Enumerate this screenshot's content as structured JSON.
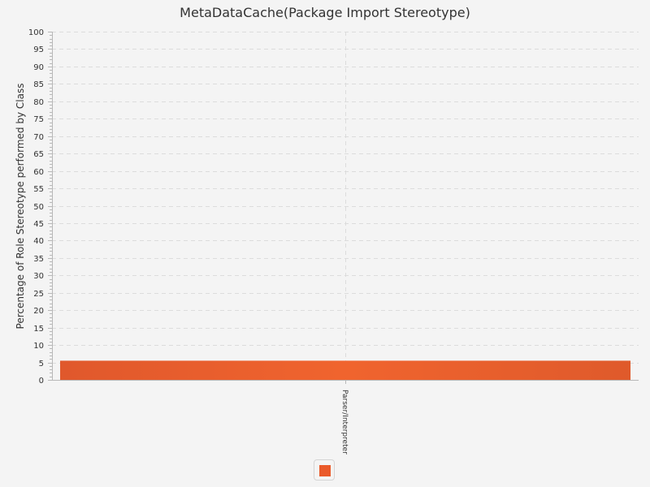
{
  "chart_data": {
    "type": "bar",
    "title": "MetaDataCache(Package Import Stereotype)",
    "xlabel": "",
    "ylabel": "Percentage of Role Stereotype performed by Class",
    "categories": [
      "Parser/Interpreter"
    ],
    "series": [
      {
        "name": "",
        "values": [
          5.5
        ]
      }
    ],
    "ylim": [
      0,
      100
    ],
    "ytick_step": 5,
    "grid": true,
    "legend": "bottom-center",
    "colors": {
      "bar": "#ea5a2a",
      "grid": "#dcdcdc",
      "axis": "#b8b8b8"
    }
  }
}
